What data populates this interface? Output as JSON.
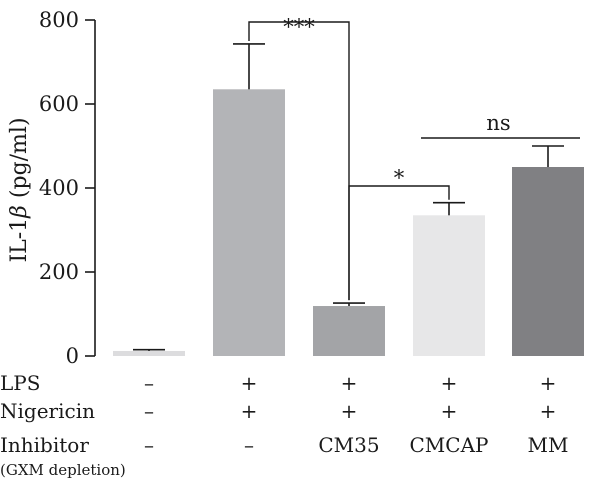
{
  "chart_data": {
    "type": "bar",
    "ylabel": "IL-1β (pg/ml)",
    "ylabel_parts": {
      "prefix": "IL-1",
      "symbol": "β",
      "suffix": " (pg/ml)"
    },
    "ylim": [
      0,
      800
    ],
    "yticks": [
      0,
      200,
      400,
      600,
      800
    ],
    "grid": false,
    "bars": [
      {
        "value": 12,
        "error": 3,
        "color": "#dcdcde"
      },
      {
        "value": 635,
        "error": 108,
        "color": "#b3b4b7"
      },
      {
        "value": 119,
        "error": 7,
        "color": "#a3a4a7"
      },
      {
        "value": 335,
        "error": 30,
        "color": "#e7e7e8"
      },
      {
        "value": 450,
        "error": 50,
        "color": "#808083"
      }
    ],
    "conditions": [
      {
        "label": "LPS",
        "values": [
          "–",
          "+",
          "+",
          "+",
          "+"
        ]
      },
      {
        "label": "Nigericin",
        "values": [
          "–",
          "+",
          "+",
          "+",
          "+"
        ]
      },
      {
        "label": "Inhibitor",
        "sublabel": "(GXM depletion)",
        "values": [
          "–",
          "–",
          "CM35",
          "CMCAP",
          "MM"
        ]
      }
    ],
    "significance": [
      {
        "from": 1,
        "to": 2,
        "label": "***"
      },
      {
        "from": 2,
        "to": 3,
        "label": "*"
      },
      {
        "from": 3,
        "to": 4,
        "label": "ns"
      }
    ]
  }
}
